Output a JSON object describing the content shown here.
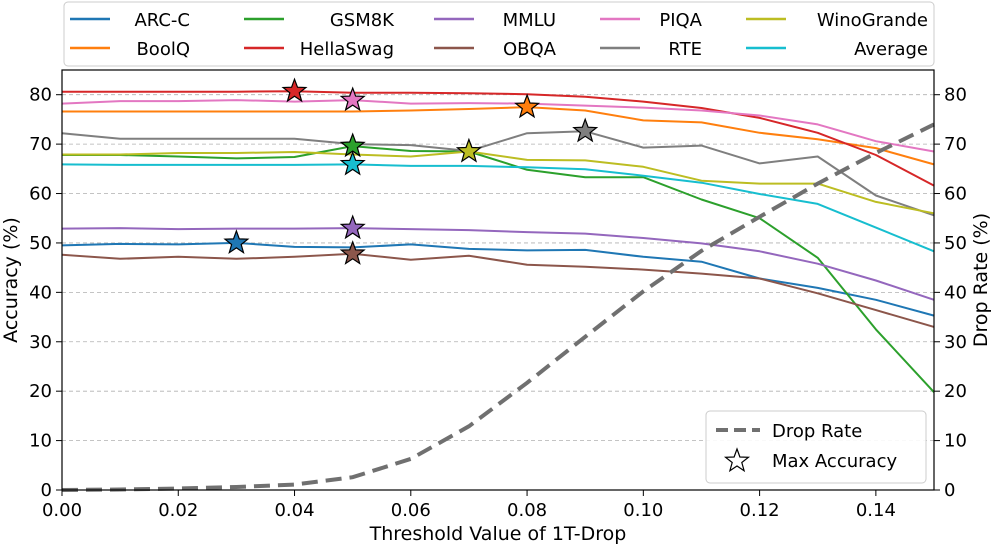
{
  "chart_data": {
    "type": "line",
    "xlabel": "Threshold Value of 1T-Drop",
    "ylabel": "Accuracy (%)",
    "y2label": "Drop Rate (%)",
    "xlim": [
      0,
      0.15
    ],
    "ylim": [
      0,
      85
    ],
    "y2lim": [
      0,
      85
    ],
    "x_ticks": [
      0,
      0.02,
      0.04,
      0.06,
      0.08,
      0.1,
      0.12,
      0.14
    ],
    "x_tick_labels": [
      "0.00",
      "0.02",
      "0.04",
      "0.06",
      "0.08",
      "0.10",
      "0.12",
      "0.14"
    ],
    "y_ticks": [
      0,
      10,
      20,
      30,
      40,
      50,
      60,
      70,
      80
    ],
    "y_tick_labels": [
      "0",
      "10",
      "20",
      "30",
      "40",
      "50",
      "60",
      "70",
      "80"
    ],
    "grid": "horizontal-dashed",
    "x": [
      0,
      0.01,
      0.02,
      0.03,
      0.04,
      0.05,
      0.06,
      0.07,
      0.08,
      0.09,
      0.1,
      0.11,
      0.12,
      0.13,
      0.14,
      0.15
    ],
    "series": [
      {
        "name": "ARC-C",
        "color": "#1f77b4",
        "values": [
          49.5,
          49.8,
          49.7,
          50.0,
          49.2,
          49.1,
          49.7,
          48.8,
          48.5,
          48.6,
          47.2,
          46.2,
          42.8,
          40.9,
          38.5,
          35.3
        ],
        "max_x": 0.03,
        "max_y": 50.0
      },
      {
        "name": "BoolQ",
        "color": "#ff7f0e",
        "values": [
          76.6,
          76.6,
          76.6,
          76.6,
          76.6,
          76.6,
          76.8,
          77.1,
          77.5,
          76.8,
          74.8,
          74.4,
          72.3,
          71.0,
          69.2,
          65.9
        ],
        "max_x": 0.08,
        "max_y": 77.5
      },
      {
        "name": "GSM8K",
        "color": "#2ca02c",
        "values": [
          67.8,
          67.8,
          67.5,
          67.1,
          67.4,
          69.6,
          68.6,
          68.5,
          64.8,
          63.3,
          63.3,
          58.8,
          55.0,
          47.0,
          32.5,
          19.8
        ],
        "max_x": 0.05,
        "max_y": 69.6
      },
      {
        "name": "HellaSwag",
        "color": "#d62728",
        "values": [
          80.6,
          80.6,
          80.6,
          80.6,
          80.7,
          80.4,
          80.4,
          80.3,
          80.1,
          79.6,
          78.6,
          77.3,
          75.3,
          72.3,
          67.8,
          61.6
        ],
        "max_x": 0.04,
        "max_y": 80.7
      },
      {
        "name": "MMLU",
        "color": "#9467bd",
        "values": [
          52.9,
          53.0,
          52.8,
          52.9,
          52.9,
          53.0,
          52.8,
          52.6,
          52.2,
          51.9,
          51.0,
          49.9,
          48.3,
          45.8,
          42.4,
          38.5
        ],
        "max_x": 0.05,
        "max_y": 53.0
      },
      {
        "name": "OBQA",
        "color": "#8c564b",
        "values": [
          47.6,
          46.8,
          47.2,
          46.8,
          47.2,
          47.8,
          46.6,
          47.4,
          45.6,
          45.2,
          44.6,
          43.8,
          42.8,
          39.8,
          36.4,
          33.0
        ],
        "max_x": 0.05,
        "max_y": 47.8
      },
      {
        "name": "PIQA",
        "color": "#e377c2",
        "values": [
          78.2,
          78.7,
          78.7,
          78.9,
          78.6,
          78.9,
          78.2,
          78.3,
          78.2,
          77.8,
          77.4,
          76.8,
          75.8,
          74.0,
          70.6,
          68.5
        ],
        "max_x": 0.05,
        "max_y": 78.9
      },
      {
        "name": "RTE",
        "color": "#7f7f7f",
        "values": [
          72.2,
          71.1,
          71.1,
          71.1,
          71.1,
          70.0,
          69.8,
          68.6,
          72.2,
          72.6,
          69.3,
          69.7,
          66.1,
          67.5,
          59.6,
          55.6
        ],
        "max_x": 0.09,
        "max_y": 72.6
      },
      {
        "name": "WinoGrande",
        "color": "#bcbd22",
        "values": [
          67.9,
          67.9,
          68.2,
          68.2,
          68.4,
          67.9,
          67.5,
          68.5,
          66.8,
          66.7,
          65.4,
          62.6,
          62.0,
          62.0,
          58.3,
          56.0
        ],
        "max_x": 0.07,
        "max_y": 68.5
      },
      {
        "name": "Average",
        "color": "#17becf",
        "values": [
          65.9,
          65.8,
          65.8,
          65.8,
          65.8,
          65.9,
          65.6,
          65.6,
          65.3,
          64.9,
          63.6,
          62.2,
          59.9,
          57.9,
          53.1,
          48.3
        ],
        "max_x": 0.05,
        "max_y": 65.9
      }
    ],
    "drop_rate": {
      "name": "Drop Rate",
      "color": "#707070",
      "axis": "right",
      "values": [
        0.0,
        0.1,
        0.3,
        0.6,
        1.1,
        2.6,
        6.3,
        12.9,
        21.7,
        31.0,
        40.2,
        48.4,
        55.3,
        62.0,
        68.2,
        74.0
      ]
    },
    "legend_top": [
      "ARC-C",
      "GSM8K",
      "MMLU",
      "PIQA",
      "WinoGrande",
      "BoolQ",
      "HellaSwag",
      "OBQA",
      "RTE",
      "Average"
    ],
    "legend_bottom_right": [
      "Drop Rate",
      "Max Accuracy"
    ]
  }
}
